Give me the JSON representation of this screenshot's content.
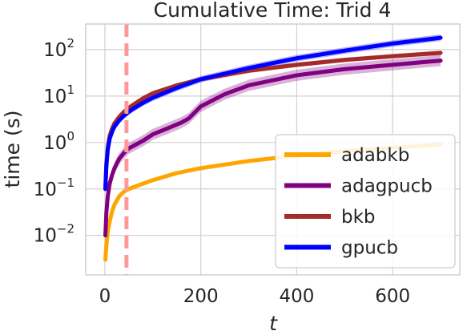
{
  "chart_data": {
    "type": "line",
    "title": "Cumulative Time: Trid 4",
    "xlabel": "t",
    "ylabel": "time (s)",
    "xlim": [
      -40,
      740
    ],
    "ylim_log10": [
      -2.85,
      2.55
    ],
    "yscale": "log",
    "grid": true,
    "legend_placement": "lower-right",
    "xticks": [
      0,
      200,
      400,
      600
    ],
    "xtick_labels": [
      "0",
      "200",
      "400",
      "600"
    ],
    "yticks_log10": [
      -2,
      -1,
      0,
      1,
      2
    ],
    "ytick_labels": [
      {
        "base": "10",
        "exp": "−2"
      },
      {
        "base": "10",
        "exp": "−1"
      },
      {
        "base": "10",
        "exp": "0"
      },
      {
        "base": "10",
        "exp": "1"
      },
      {
        "base": "10",
        "exp": "2"
      }
    ],
    "vline": {
      "x": 45,
      "color": "#ff9999"
    },
    "series": [
      {
        "name": "adabkb",
        "color": "#ffa500",
        "x": [
          1,
          3,
          6,
          10,
          15,
          20,
          30,
          40,
          45,
          50,
          75,
          100,
          150,
          200,
          300,
          400,
          500,
          600,
          700
        ],
        "y": [
          0.003,
          0.006,
          0.012,
          0.02,
          0.033,
          0.046,
          0.07,
          0.088,
          0.094,
          0.1,
          0.125,
          0.155,
          0.22,
          0.28,
          0.4,
          0.52,
          0.65,
          0.77,
          0.9
        ],
        "band": 0.04
      },
      {
        "name": "adagpucb",
        "color": "#800080",
        "x": [
          1,
          3,
          6,
          10,
          15,
          20,
          30,
          40,
          50,
          60,
          80,
          100,
          130,
          160,
          175,
          200,
          250,
          300,
          400,
          500,
          600,
          700
        ],
        "y": [
          0.01,
          0.03,
          0.07,
          0.13,
          0.2,
          0.28,
          0.45,
          0.6,
          0.75,
          0.85,
          1.1,
          1.5,
          2.0,
          2.7,
          3.3,
          6.0,
          11,
          17,
          28,
          38,
          47,
          58
        ],
        "band": 0.12
      },
      {
        "name": "bkb",
        "color": "#a52a2a",
        "x": [
          1,
          3,
          6,
          10,
          15,
          20,
          30,
          40,
          50,
          60,
          80,
          100,
          150,
          200,
          300,
          400,
          500,
          600,
          700
        ],
        "y": [
          0.1,
          0.35,
          0.8,
          1.4,
          2.0,
          2.6,
          3.6,
          4.6,
          5.6,
          6.6,
          9.0,
          11.5,
          17,
          23,
          35,
          47,
          60,
          72,
          85
        ],
        "band": 0.05
      },
      {
        "name": "gpucb",
        "color": "#0000ff",
        "x": [
          1,
          3,
          6,
          10,
          15,
          20,
          30,
          40,
          50,
          60,
          80,
          100,
          150,
          200,
          300,
          400,
          500,
          600,
          700
        ],
        "y": [
          0.1,
          0.3,
          0.7,
          1.2,
          1.7,
          2.2,
          3.0,
          3.8,
          4.6,
          5.4,
          7.2,
          9.2,
          15,
          23,
          40,
          65,
          95,
          135,
          180
        ],
        "band": 0.07
      }
    ]
  }
}
